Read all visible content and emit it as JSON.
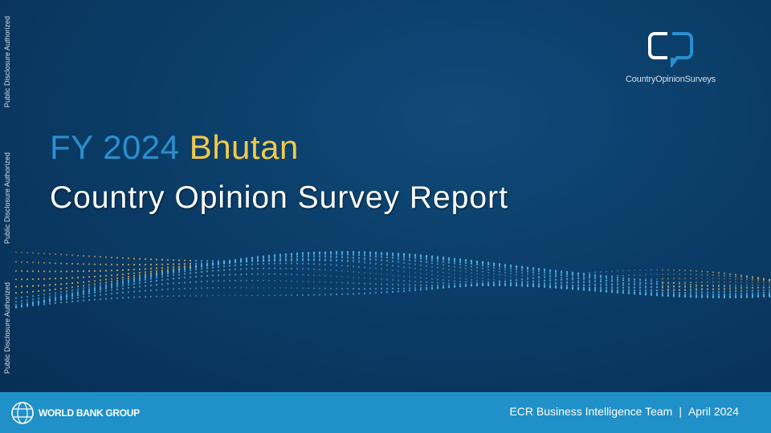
{
  "side_labels": [
    "Public Disclosure Authorized",
    "Public Disclosure Authorized",
    "Public Disclosure Authorized"
  ],
  "title": {
    "prefix": "FY 2024",
    "country": "Bhutan",
    "subtitle": "Country Opinion Survey Report"
  },
  "logo": {
    "text": "CountryOpinionSurveys"
  },
  "footer": {
    "org": "WORLD BANK GROUP",
    "team": "ECR Business Intelligence Team",
    "separator": "|",
    "date": "April 2024"
  },
  "colors": {
    "background": "#0b3d68",
    "footer": "#2090c9",
    "accent_blue": "#2a8fcf",
    "accent_gold": "#f2c94c"
  }
}
